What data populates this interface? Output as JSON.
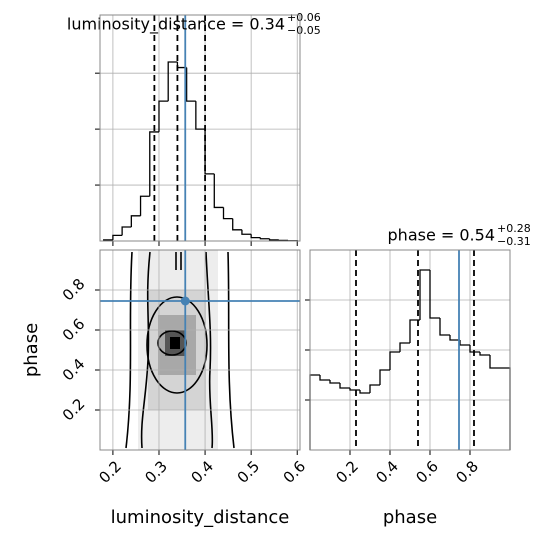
{
  "chart_data": [
    {
      "type": "histogram",
      "title": "luminosity_distance = 0.34",
      "title_upper": "+0.06",
      "title_lower": "−0.05",
      "bins": [
        0.18,
        0.2,
        0.22,
        0.24,
        0.26,
        0.28,
        0.3,
        0.32,
        0.34,
        0.36,
        0.38,
        0.4,
        0.42,
        0.44,
        0.46,
        0.48,
        0.5,
        0.52,
        0.54,
        0.56,
        0.58,
        0.6
      ],
      "values": [
        0.02,
        0.1,
        0.25,
        0.45,
        0.8,
        1.95,
        2.5,
        3.2,
        3.1,
        2.5,
        2.0,
        1.2,
        0.6,
        0.4,
        0.2,
        0.12,
        0.06,
        0.04,
        0.02,
        0.01,
        0.005
      ],
      "xlim": [
        0.172,
        0.606
      ],
      "xticks": [
        0.2,
        0.3,
        0.4,
        0.5,
        0.6
      ],
      "ylim": [
        0,
        4.04
      ],
      "yticks": [
        1,
        2,
        3
      ],
      "quantiles": [
        0.29,
        0.34,
        0.4
      ],
      "truth": 0.357,
      "color": "#000000",
      "truth_color": "#4682b4",
      "grid": true
    },
    {
      "type": "contour",
      "xlabel": "luminosity_distance",
      "ylabel": "phase",
      "xlim": [
        0.172,
        0.606
      ],
      "xticks": [
        0.2,
        0.3,
        0.4,
        0.5,
        0.6
      ],
      "ylim": [
        0,
        1
      ],
      "yticks": [
        0.2,
        0.4,
        0.6,
        0.8
      ],
      "truth": [
        0.357,
        0.745
      ],
      "truth_color": "#4682b4",
      "grid": true
    },
    {
      "type": "histogram",
      "title": "phase = 0.54",
      "title_upper": "+0.28",
      "title_lower": "−0.31",
      "xlabel": "phase",
      "bins": [
        0,
        0.05,
        0.1,
        0.15,
        0.2,
        0.25,
        0.3,
        0.35,
        0.4,
        0.45,
        0.5,
        0.55,
        0.6,
        0.65,
        0.7,
        0.75,
        0.8,
        0.85,
        0.9,
        0.95,
        1.0
      ],
      "values": [
        1.5,
        1.4,
        1.34,
        1.24,
        1.2,
        1.14,
        1.3,
        1.6,
        1.96,
        2.14,
        2.6,
        3.6,
        2.64,
        2.3,
        2.2,
        2.1,
        1.96,
        1.9,
        1.64,
        1.64
      ],
      "xlim": [
        0,
        1
      ],
      "xticks": [
        0.2,
        0.4,
        0.6,
        0.8
      ],
      "ylim": [
        0,
        4
      ],
      "yticks": [
        1,
        2,
        3
      ],
      "quantiles": [
        0.23,
        0.54,
        0.82
      ],
      "truth": 0.745,
      "color": "#000000",
      "truth_color": "#4682b4",
      "grid": true
    }
  ]
}
